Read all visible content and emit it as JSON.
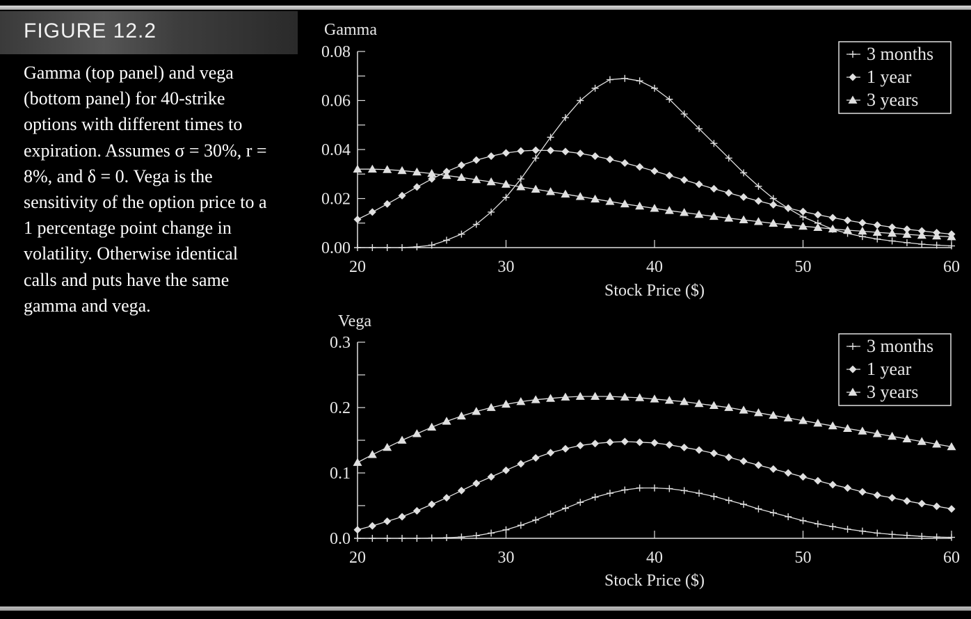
{
  "figure": {
    "label": "FIGURE 12.2",
    "caption": "Gamma (top panel) and vega (bottom panel) for 40-strike options with different times to expiration. Assumes σ = 30%, r = 8%, and δ = 0. Vega is the sensitivity of the option price to a 1 percentage point change in volatility. Otherwise identical calls and puts have the same gamma and vega."
  },
  "colors": {
    "background": "#000000",
    "series": "#e0e0e0",
    "header_band": "#4a4a4a"
  },
  "chart_data": [
    {
      "type": "line",
      "panel": "top",
      "ylabel": "Gamma",
      "xlabel": "Stock Price ($)",
      "xlim": [
        20,
        60
      ],
      "ylim": [
        0,
        0.08
      ],
      "xticks": [
        20,
        30,
        40,
        50,
        60
      ],
      "yticks": [
        "0.00",
        "0.02",
        "0.04",
        "0.06",
        "0.08"
      ],
      "legend_position": "top-right",
      "x": [
        20,
        21,
        22,
        23,
        24,
        25,
        26,
        27,
        28,
        29,
        30,
        31,
        32,
        33,
        34,
        35,
        36,
        37,
        38,
        39,
        40,
        41,
        42,
        43,
        44,
        45,
        46,
        47,
        48,
        49,
        50,
        51,
        52,
        53,
        54,
        55,
        56,
        57,
        58,
        59,
        60
      ],
      "series": [
        {
          "name": "3 months",
          "marker": "plus",
          "values": [
            0.0,
            0.0,
            0.0,
            0.0,
            0.0003,
            0.001,
            0.003,
            0.0055,
            0.0095,
            0.0145,
            0.0205,
            0.028,
            0.0365,
            0.045,
            0.053,
            0.06,
            0.065,
            0.0685,
            0.069,
            0.068,
            0.065,
            0.0605,
            0.0545,
            0.0485,
            0.0425,
            0.0365,
            0.0305,
            0.025,
            0.02,
            0.016,
            0.0125,
            0.01,
            0.0075,
            0.0058,
            0.0045,
            0.0035,
            0.0027,
            0.002,
            0.0014,
            0.001,
            0.0007
          ]
        },
        {
          "name": "1 year",
          "marker": "diamond",
          "values": [
            0.0115,
            0.0145,
            0.0178,
            0.0212,
            0.0247,
            0.028,
            0.031,
            0.0336,
            0.0357,
            0.0373,
            0.0386,
            0.0394,
            0.0397,
            0.0396,
            0.0392,
            0.0384,
            0.0373,
            0.036,
            0.0345,
            0.0329,
            0.0312,
            0.0294,
            0.0276,
            0.0258,
            0.024,
            0.0223,
            0.0206,
            0.019,
            0.0175,
            0.0161,
            0.0147,
            0.0134,
            0.0122,
            0.0111,
            0.0101,
            0.0092,
            0.0083,
            0.0075,
            0.0068,
            0.0061,
            0.0055
          ]
        },
        {
          "name": "3 years",
          "marker": "triangle",
          "values": [
            0.032,
            0.032,
            0.0318,
            0.0314,
            0.0308,
            0.0302,
            0.0294,
            0.0286,
            0.0277,
            0.0268,
            0.0258,
            0.0248,
            0.0238,
            0.0228,
            0.0218,
            0.0208,
            0.0198,
            0.0188,
            0.0178,
            0.0169,
            0.016,
            0.0151,
            0.0143,
            0.0135,
            0.0127,
            0.012,
            0.0113,
            0.0106,
            0.0099,
            0.0093,
            0.0087,
            0.0082,
            0.0076,
            0.0071,
            0.0067,
            0.0062,
            0.0058,
            0.0054,
            0.005,
            0.0047,
            0.0044
          ]
        }
      ]
    },
    {
      "type": "line",
      "panel": "bottom",
      "ylabel": "Vega",
      "xlabel": "Stock Price ($)",
      "xlim": [
        20,
        60
      ],
      "ylim": [
        0,
        0.3
      ],
      "xticks": [
        20,
        30,
        40,
        50,
        60
      ],
      "yticks": [
        "0.0",
        "0.1",
        "0.2",
        "0.3"
      ],
      "legend_position": "top-right",
      "x": [
        20,
        21,
        22,
        23,
        24,
        25,
        26,
        27,
        28,
        29,
        30,
        31,
        32,
        33,
        34,
        35,
        36,
        37,
        38,
        39,
        40,
        41,
        42,
        43,
        44,
        45,
        46,
        47,
        48,
        49,
        50,
        51,
        52,
        53,
        54,
        55,
        56,
        57,
        58,
        59,
        60
      ],
      "series": [
        {
          "name": "3 months",
          "marker": "plus",
          "values": [
            0.0,
            0.0,
            0.0,
            0.0,
            0.0,
            0.0005,
            0.001,
            0.002,
            0.004,
            0.008,
            0.013,
            0.02,
            0.028,
            0.037,
            0.046,
            0.055,
            0.063,
            0.069,
            0.074,
            0.077,
            0.077,
            0.076,
            0.073,
            0.069,
            0.064,
            0.058,
            0.052,
            0.045,
            0.039,
            0.033,
            0.027,
            0.022,
            0.018,
            0.014,
            0.011,
            0.008,
            0.006,
            0.0045,
            0.003,
            0.002,
            0.0015
          ]
        },
        {
          "name": "1 year",
          "marker": "diamond",
          "values": [
            0.013,
            0.019,
            0.026,
            0.033,
            0.042,
            0.052,
            0.062,
            0.073,
            0.084,
            0.094,
            0.104,
            0.114,
            0.123,
            0.131,
            0.137,
            0.142,
            0.145,
            0.147,
            0.148,
            0.147,
            0.146,
            0.143,
            0.139,
            0.135,
            0.13,
            0.124,
            0.118,
            0.112,
            0.106,
            0.1,
            0.094,
            0.088,
            0.082,
            0.077,
            0.071,
            0.066,
            0.062,
            0.057,
            0.053,
            0.049,
            0.045
          ]
        },
        {
          "name": "3 years",
          "marker": "triangle",
          "values": [
            0.116,
            0.128,
            0.139,
            0.15,
            0.16,
            0.17,
            0.179,
            0.187,
            0.194,
            0.2,
            0.205,
            0.209,
            0.212,
            0.214,
            0.216,
            0.217,
            0.217,
            0.217,
            0.216,
            0.215,
            0.213,
            0.211,
            0.209,
            0.206,
            0.203,
            0.2,
            0.196,
            0.192,
            0.188,
            0.184,
            0.18,
            0.176,
            0.172,
            0.168,
            0.164,
            0.16,
            0.156,
            0.152,
            0.148,
            0.144,
            0.14
          ]
        }
      ]
    }
  ]
}
